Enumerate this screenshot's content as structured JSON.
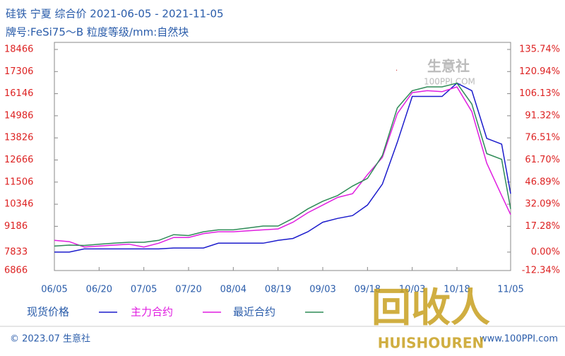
{
  "chart_data": {
    "type": "line",
    "title": "硅铁  宁夏  综合价  2021-06-05 - 2021-11-05",
    "subtitle": "牌号:FeSi75～B 粒度等级/mm:自然块",
    "x": [
      "06/05",
      "06/10",
      "06/15",
      "06/20",
      "06/25",
      "06/30",
      "07/05",
      "07/10",
      "07/15",
      "07/20",
      "07/25",
      "07/30",
      "08/04",
      "08/09",
      "08/14",
      "08/19",
      "08/24",
      "08/29",
      "09/03",
      "09/08",
      "09/13",
      "09/18",
      "09/23",
      "09/28",
      "10/03",
      "10/08",
      "10/13",
      "10/18",
      "10/23",
      "10/28",
      "11/02",
      "11/05"
    ],
    "xticks": [
      "06/05",
      "06/20",
      "07/05",
      "07/20",
      "08/04",
      "08/19",
      "09/03",
      "09/18",
      "10/03",
      "10/18",
      "11/05"
    ],
    "series": [
      {
        "name": "现货价格",
        "color": "#1c1ccc",
        "values": [
          7833,
          7833,
          8000,
          8000,
          8000,
          8000,
          8000,
          8000,
          8050,
          8050,
          8050,
          8300,
          8300,
          8300,
          8300,
          8450,
          8550,
          8900,
          9400,
          9600,
          9750,
          10300,
          11400,
          13600,
          16000,
          16000,
          16000,
          16700,
          16300,
          13800,
          13500,
          10900
        ]
      },
      {
        "name": "主力合约",
        "color": "#e01ee0",
        "values": [
          8450,
          8380,
          8100,
          8150,
          8200,
          8250,
          8100,
          8300,
          8600,
          8600,
          8800,
          8900,
          8900,
          8950,
          9000,
          9050,
          9400,
          9900,
          10300,
          10700,
          10900,
          11900,
          12800,
          15100,
          16200,
          16300,
          16250,
          16500,
          15200,
          12500,
          10800,
          9800
        ]
      },
      {
        "name": "最近合约",
        "color": "#2e8b57",
        "values": [
          8150,
          8200,
          8180,
          8250,
          8300,
          8350,
          8350,
          8450,
          8750,
          8700,
          8900,
          9000,
          9000,
          9100,
          9200,
          9200,
          9600,
          10100,
          10500,
          10800,
          11300,
          11700,
          12900,
          15400,
          16300,
          16500,
          16500,
          16700,
          15600,
          13000,
          12700,
          10100
        ]
      }
    ],
    "ylim": [
      6866,
      18466
    ],
    "yticks": [
      18466,
      17306,
      16146,
      14986,
      13826,
      12666,
      11506,
      10346,
      9186,
      7833,
      6866
    ],
    "y2lim": [
      -12.34,
      135.74
    ],
    "y2ticks": [
      {
        "value": 135.74,
        "label": "135.74%"
      },
      {
        "value": 120.94,
        "label": "120.94%"
      },
      {
        "value": 106.13,
        "label": "106.13%"
      },
      {
        "value": 91.32,
        "label": "91.32%"
      },
      {
        "value": 76.51,
        "label": "76.51%"
      },
      {
        "value": 61.7,
        "label": "61.70%"
      },
      {
        "value": 46.89,
        "label": "46.89%"
      },
      {
        "value": 32.09,
        "label": "32.09%"
      },
      {
        "value": 17.28,
        "label": "17.28%"
      },
      {
        "value": 0,
        "label": "0.00%"
      },
      {
        "value": -12.34,
        "label": "-12.34%"
      }
    ],
    "grid": false
  },
  "footer": {
    "copyright": "© 2023.07 生意社",
    "site": "www.100PPI.com"
  },
  "logo": {
    "name": "生意社",
    "url": "100PPI.COM"
  },
  "watermark": {
    "big": "回收人",
    "small": "HUISHOUREN"
  }
}
